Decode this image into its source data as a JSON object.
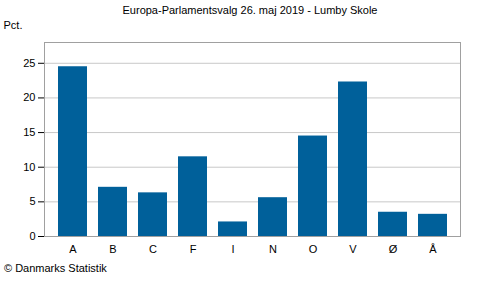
{
  "chart_data": {
    "type": "bar",
    "title": "Europa-Parlamentsvalg 26. maj 2019 - Lumby Skole",
    "y_label": "Pct.",
    "caption": "© Danmarks Statistik",
    "categories": [
      "A",
      "B",
      "C",
      "F",
      "I",
      "N",
      "O",
      "V",
      "Ø",
      "Å"
    ],
    "values": [
      24.5,
      7.1,
      6.3,
      11.5,
      2.1,
      5.6,
      14.5,
      22.3,
      3.5,
      3.2
    ],
    "color": "#00609a",
    "ylim": [
      0,
      28
    ],
    "yticks": [
      0,
      5,
      10,
      15,
      20,
      25
    ],
    "grid": true
  }
}
